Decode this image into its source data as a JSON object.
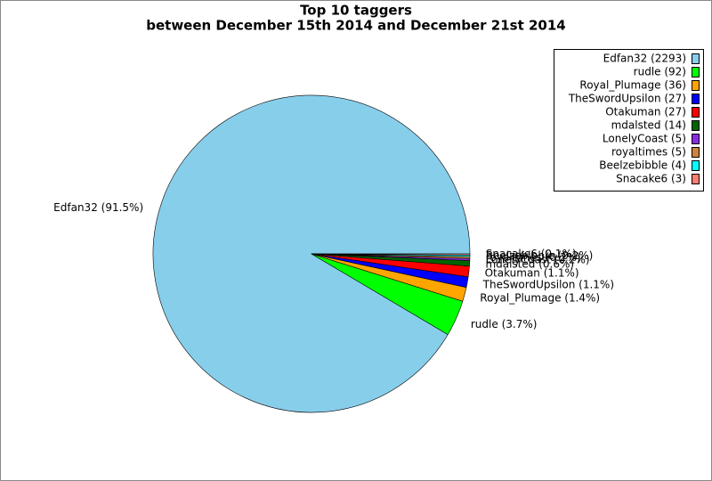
{
  "chart_data": {
    "type": "pie",
    "title": "Top 10 taggers",
    "subtitle": "between December 15th 2014 and December 21st 2014",
    "categories": [
      "Edfan32",
      "rudle",
      "Royal_Plumage",
      "TheSwordUpsilon",
      "Otakuman",
      "mdalsted",
      "LonelyCoast",
      "royaltimes",
      "Beelzebibble",
      "Snacake6"
    ],
    "values": [
      2293,
      92,
      36,
      27,
      27,
      14,
      5,
      5,
      4,
      3
    ],
    "legend_labels": [
      "Edfan32 (2293)",
      "rudle (92)",
      "Royal_Plumage (36)",
      "TheSwordUpsilon (27)",
      "Otakuman (27)",
      "mdalsted (14)",
      "LonelyCoast (5)",
      "royaltimes (5)",
      "Beelzebibble (4)",
      "Snacake6 (3)"
    ],
    "value_labels": [
      "Edfan32 (91.5%)",
      "rudle (3.7%)",
      "Royal_Plumage (1.4%)",
      "TheSwordUpsilon (1.1%)",
      "Otakuman (1.1%)",
      "mdalsted (0.6%)",
      "LonelyCoast (0.2%)",
      "royaltimes (0.2%)",
      "Beelzebibble (0.2%)",
      "Snacake6 (0.1%)"
    ],
    "colors": [
      "#87ceeb",
      "#00ff00",
      "#ffa500",
      "#0000ff",
      "#ff0000",
      "#006400",
      "#8a2be2",
      "#cd853f",
      "#00ffff",
      "#fa8072"
    ],
    "legend": "upper right"
  }
}
